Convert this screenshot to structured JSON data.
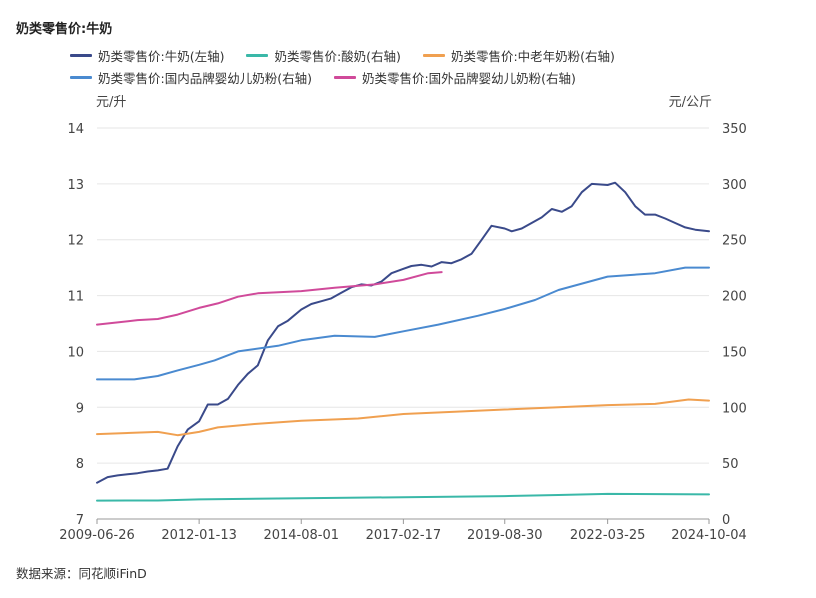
{
  "chart_data": {
    "type": "line",
    "title": "奶类零售价:牛奶",
    "left_unit": "元/升",
    "right_unit": "元/公斤",
    "left_ylim": [
      7,
      14
    ],
    "left_ticks": [
      "14",
      "13",
      "12",
      "11",
      "10",
      "9",
      "8",
      "7"
    ],
    "right_ylim": [
      0,
      350
    ],
    "right_ticks": [
      "350",
      "300",
      "250",
      "200",
      "150",
      "100",
      "50",
      "0"
    ],
    "x_range": [
      "2009-06-26",
      "2024-10-04"
    ],
    "x_ticks": [
      "2009-06-26",
      "2012-01-13",
      "2014-08-01",
      "2017-02-17",
      "2019-08-30",
      "2022-03-25",
      "2024-10-04"
    ],
    "grid": true,
    "legend_position": "top",
    "source": "数据来源：同花顺iFinD",
    "series": [
      {
        "name": "奶类零售价:牛奶(左轴)",
        "axis": "left",
        "color": "#3a4a8a",
        "points": [
          [
            "2009-06-26",
            7.65
          ],
          [
            "2009-10-01",
            7.75
          ],
          [
            "2010-01-01",
            7.78
          ],
          [
            "2010-04-01",
            7.8
          ],
          [
            "2010-07-01",
            7.82
          ],
          [
            "2010-10-01",
            7.85
          ],
          [
            "2011-01-01",
            7.87
          ],
          [
            "2011-04-01",
            7.9
          ],
          [
            "2011-07-01",
            8.3
          ],
          [
            "2011-10-01",
            8.6
          ],
          [
            "2012-01-13",
            8.75
          ],
          [
            "2012-04-01",
            9.05
          ],
          [
            "2012-07-01",
            9.05
          ],
          [
            "2012-10-01",
            9.15
          ],
          [
            "2013-01-01",
            9.4
          ],
          [
            "2013-04-01",
            9.6
          ],
          [
            "2013-07-01",
            9.75
          ],
          [
            "2013-10-01",
            10.2
          ],
          [
            "2014-01-01",
            10.45
          ],
          [
            "2014-04-01",
            10.55
          ],
          [
            "2014-08-01",
            10.75
          ],
          [
            "2014-11-01",
            10.85
          ],
          [
            "2015-02-01",
            10.9
          ],
          [
            "2015-05-01",
            10.95
          ],
          [
            "2015-08-01",
            11.05
          ],
          [
            "2015-11-01",
            11.15
          ],
          [
            "2016-02-01",
            11.2
          ],
          [
            "2016-05-01",
            11.18
          ],
          [
            "2016-08-01",
            11.25
          ],
          [
            "2016-11-01",
            11.4
          ],
          [
            "2017-02-17",
            11.48
          ],
          [
            "2017-05-01",
            11.53
          ],
          [
            "2017-08-01",
            11.55
          ],
          [
            "2017-11-01",
            11.52
          ],
          [
            "2018-02-01",
            11.6
          ],
          [
            "2018-05-01",
            11.58
          ],
          [
            "2018-08-01",
            11.65
          ],
          [
            "2018-11-01",
            11.75
          ],
          [
            "2019-02-01",
            12.0
          ],
          [
            "2019-05-01",
            12.25
          ],
          [
            "2019-08-30",
            12.2
          ],
          [
            "2019-11-01",
            12.15
          ],
          [
            "2020-02-01",
            12.2
          ],
          [
            "2020-05-01",
            12.3
          ],
          [
            "2020-08-01",
            12.4
          ],
          [
            "2020-11-01",
            12.55
          ],
          [
            "2021-02-01",
            12.5
          ],
          [
            "2021-05-01",
            12.6
          ],
          [
            "2021-08-01",
            12.85
          ],
          [
            "2021-11-01",
            13.0
          ],
          [
            "2022-03-25",
            12.98
          ],
          [
            "2022-06-01",
            13.02
          ],
          [
            "2022-09-01",
            12.85
          ],
          [
            "2022-12-01",
            12.6
          ],
          [
            "2023-03-01",
            12.45
          ],
          [
            "2023-06-01",
            12.45
          ],
          [
            "2023-09-01",
            12.38
          ],
          [
            "2023-12-01",
            12.3
          ],
          [
            "2024-03-01",
            12.22
          ],
          [
            "2024-06-01",
            12.18
          ],
          [
            "2024-10-04",
            12.15
          ]
        ]
      },
      {
        "name": "奶类零售价:酸奶(右轴)",
        "axis": "right",
        "color": "#3ab8a8",
        "points": [
          [
            "2009-06-26",
            16.5
          ],
          [
            "2011-01-01",
            16.6
          ],
          [
            "2012-01-13",
            17.5
          ],
          [
            "2014-08-01",
            18.5
          ],
          [
            "2017-02-17",
            19.5
          ],
          [
            "2019-08-30",
            20.5
          ],
          [
            "2021-01-01",
            21.5
          ],
          [
            "2022-03-25",
            22.5
          ],
          [
            "2024-10-04",
            22.0
          ]
        ]
      },
      {
        "name": "奶类零售价:中老年奶粉(右轴)",
        "axis": "right",
        "color": "#f0a050",
        "points": [
          [
            "2009-06-26",
            76.0
          ],
          [
            "2011-01-01",
            78.0
          ],
          [
            "2011-07-01",
            75.0
          ],
          [
            "2012-01-13",
            78.0
          ],
          [
            "2012-07-01",
            82.0
          ],
          [
            "2013-06-01",
            85.0
          ],
          [
            "2014-08-01",
            88.0
          ],
          [
            "2016-01-01",
            90.0
          ],
          [
            "2017-02-17",
            94.0
          ],
          [
            "2018-06-01",
            96.0
          ],
          [
            "2019-08-30",
            98.0
          ],
          [
            "2021-01-01",
            100.0
          ],
          [
            "2022-03-25",
            102.0
          ],
          [
            "2023-06-01",
            103.0
          ],
          [
            "2024-04-01",
            107.0
          ],
          [
            "2024-10-04",
            106.0
          ]
        ]
      },
      {
        "name": "奶类零售价:国内品牌婴幼儿奶粉(右轴)",
        "axis": "right",
        "color": "#4a8ad0",
        "points": [
          [
            "2009-06-26",
            125.0
          ],
          [
            "2010-06-01",
            125.0
          ],
          [
            "2011-01-01",
            128.0
          ],
          [
            "2011-07-01",
            133.0
          ],
          [
            "2012-01-13",
            138.0
          ],
          [
            "2012-06-01",
            142.0
          ],
          [
            "2013-01-01",
            150.0
          ],
          [
            "2014-01-01",
            155.0
          ],
          [
            "2014-08-01",
            160.0
          ],
          [
            "2015-06-01",
            164.0
          ],
          [
            "2016-06-01",
            163.0
          ],
          [
            "2017-02-17",
            168.0
          ],
          [
            "2018-01-01",
            174.0
          ],
          [
            "2019-01-01",
            182.0
          ],
          [
            "2019-08-30",
            188.0
          ],
          [
            "2020-06-01",
            196.0
          ],
          [
            "2021-01-01",
            205.0
          ],
          [
            "2022-03-25",
            217.0
          ],
          [
            "2023-06-01",
            220.0
          ],
          [
            "2024-03-01",
            225.0
          ],
          [
            "2024-10-04",
            225.0
          ]
        ]
      },
      {
        "name": "奶类零售价:国外品牌婴幼儿奶粉(右轴)",
        "axis": "right",
        "color": "#d04a9a",
        "points": [
          [
            "2009-06-26",
            174.0
          ],
          [
            "2010-01-01",
            176.0
          ],
          [
            "2010-07-01",
            178.0
          ],
          [
            "2011-01-01",
            179.0
          ],
          [
            "2011-07-01",
            183.0
          ],
          [
            "2012-01-13",
            189.0
          ],
          [
            "2012-07-01",
            193.0
          ],
          [
            "2013-01-01",
            199.0
          ],
          [
            "2013-07-01",
            202.0
          ],
          [
            "2014-08-01",
            204.0
          ],
          [
            "2015-06-01",
            207.0
          ],
          [
            "2016-06-01",
            210.0
          ],
          [
            "2017-02-17",
            214.0
          ],
          [
            "2017-10-01",
            220.0
          ],
          [
            "2018-02-01",
            221.0
          ]
        ]
      }
    ]
  }
}
